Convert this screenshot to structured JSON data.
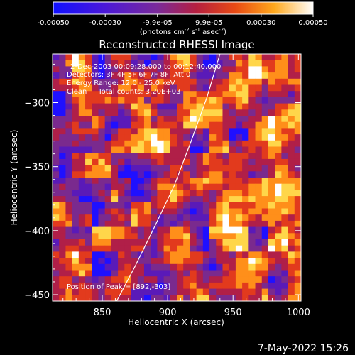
{
  "colorbar": {
    "tick_labels": [
      "-0.00050",
      "-0.00030",
      "-9.9e-05",
      "9.9e-05",
      "0.00030",
      "0.00050"
    ],
    "tick_values": [
      -0.0005,
      -0.0003,
      -9.9e-05,
      9.9e-05,
      0.0003,
      0.0005
    ],
    "range": [
      -0.0005,
      0.0005
    ],
    "units_main": "(photons cm",
    "units_sup1": "-2",
    "units_mid1": " s",
    "units_sup2": "-1",
    "units_mid2": " asec",
    "units_sup3": "-2",
    "units_end": ")"
  },
  "chart_data": {
    "type": "heatmap",
    "title": "Reconstructed RHESSI Image",
    "xlabel": "Heliocentric X (arcsec)",
    "ylabel": "Heliocentric Y (arcsec)",
    "xlim": [
      812,
      1002
    ],
    "ylim": [
      -455,
      -262
    ],
    "x_ticks": [
      850,
      900,
      950,
      1000
    ],
    "y_ticks": [
      -300,
      -350,
      -400,
      -450
    ],
    "x_tick_labels": [
      "850",
      "900",
      "950",
      "1000"
    ],
    "y_tick_labels": [
      "−300",
      "−350",
      "−400",
      "−450"
    ],
    "grid": false,
    "colormap": [
      "#1f10ff",
      "#5a1ab8",
      "#7a2a8e",
      "#b01f48",
      "#e23a1d",
      "#ff8f1a",
      "#ffd64a",
      "#ffffff"
    ],
    "info_lines": [
      "2-Dec-2003 00:09:28.000 to 00:12:40.000",
      "Detectors: 3F 4F 5F 6F 7F 8F, Att 0",
      "Energy Range: 12.0 - 25.0 keV",
      "Clean     Total counts: 3.20E+03"
    ],
    "peak_label": "Position of Peak = [892,-303]",
    "peak_position": [
      892,
      -303
    ],
    "limb_curve": [
      [
        861,
        -455
      ],
      [
        875,
        -428
      ],
      [
        890,
        -397
      ],
      [
        905,
        -365
      ],
      [
        918,
        -330
      ],
      [
        930,
        -296
      ],
      [
        940,
        -262
      ]
    ]
  },
  "footer": {
    "date_label": "7-May-2022 15:26"
  }
}
